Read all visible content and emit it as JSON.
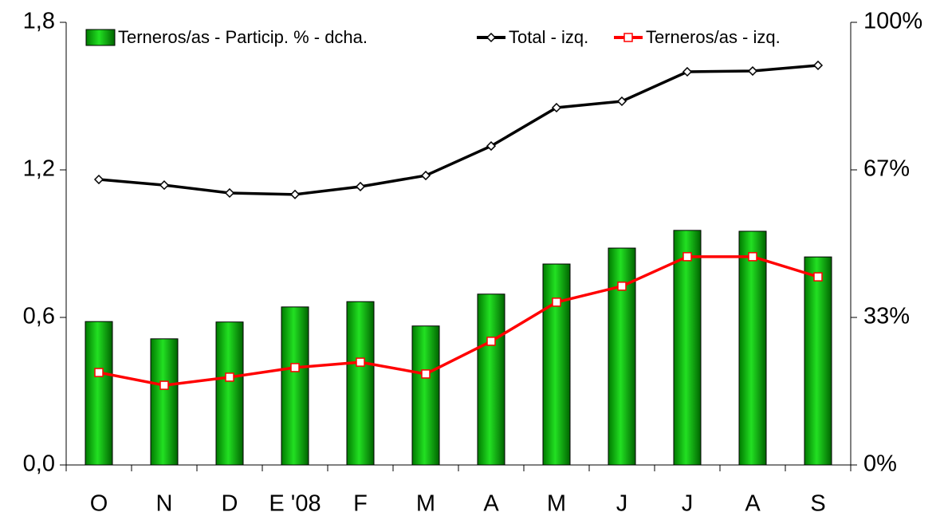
{
  "chart_data": {
    "type": "combo",
    "categories": [
      "O",
      "N",
      "D",
      "E '08",
      "F",
      "M",
      "A",
      "M",
      "J",
      "J",
      "A",
      "S"
    ],
    "series": [
      {
        "name": "Terneros/as - Particip. % - dcha.",
        "type": "bar",
        "axis": "y2",
        "color": "#00c000",
        "values": [
          32.4,
          28.5,
          32.3,
          35.7,
          36.9,
          31.4,
          38.6,
          45.4,
          49.0,
          53.0,
          52.8,
          47.0
        ]
      },
      {
        "name": "Total - izq.",
        "type": "line",
        "color": "#000000",
        "values": [
          1.161,
          1.138,
          1.106,
          1.1,
          1.132,
          1.177,
          1.297,
          1.453,
          1.479,
          1.599,
          1.602,
          1.625
        ]
      },
      {
        "name": "Terneros/as - izq.",
        "type": "line",
        "color": "#ff0000",
        "values": [
          0.376,
          0.324,
          0.357,
          0.396,
          0.418,
          0.37,
          0.503,
          0.662,
          0.727,
          0.847,
          0.847,
          0.765
        ]
      }
    ],
    "ylim": [
      0,
      1.8
    ],
    "yticks": [
      {
        "value": 0,
        "label": "0,0"
      },
      {
        "value": 0.6,
        "label": "0,6"
      },
      {
        "value": 1.2,
        "label": "1,2"
      },
      {
        "value": 1.8,
        "label": "1,8"
      }
    ],
    "y2lim": [
      0,
      100
    ],
    "y2ticks": [
      {
        "value": 0,
        "label": "0%"
      },
      {
        "value": 33.33,
        "label": "33%"
      },
      {
        "value": 66.67,
        "label": "67%"
      },
      {
        "value": 100,
        "label": "100%"
      }
    ],
    "grid": false
  }
}
